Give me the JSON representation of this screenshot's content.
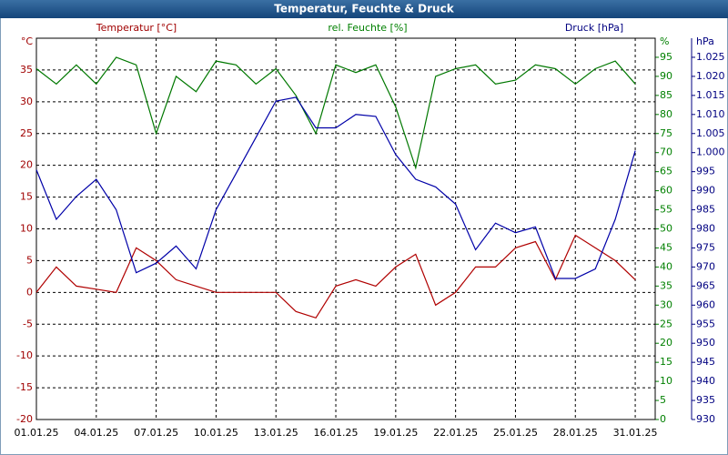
{
  "chart_data": {
    "type": "line",
    "title": "Temperatur, Feuchte & Druck",
    "ylabel": "Temperatur [°C]",
    "y2label": "rel. Feuchte [%]",
    "y3label": "Druck [hPa]",
    "y_unit": "°C",
    "y2_unit": "%",
    "y3_unit": "hPa",
    "x": [
      "01.01.25",
      "02.01.25",
      "03.01.25",
      "04.01.25",
      "05.01.25",
      "06.01.25",
      "07.01.25",
      "08.01.25",
      "09.01.25",
      "10.01.25",
      "11.01.25",
      "12.01.25",
      "13.01.25",
      "14.01.25",
      "15.01.25",
      "16.01.25",
      "17.01.25",
      "18.01.25",
      "19.01.25",
      "20.01.25",
      "21.01.25",
      "22.01.25",
      "23.01.25",
      "24.01.25",
      "25.01.25",
      "26.01.25",
      "27.01.25",
      "28.01.25",
      "29.01.25",
      "30.01.25",
      "31.01.25"
    ],
    "xticks": [
      "01.01.25",
      "04.01.25",
      "07.01.25",
      "10.01.25",
      "13.01.25",
      "16.01.25",
      "19.01.25",
      "22.01.25",
      "25.01.25",
      "28.01.25",
      "31.01.25"
    ],
    "ylim": [
      -20,
      40
    ],
    "yticks": [
      -20,
      -15,
      -10,
      -5,
      0,
      5,
      10,
      15,
      20,
      25,
      30,
      35
    ],
    "y2lim": [
      0,
      100
    ],
    "y2ticks": [
      0,
      5,
      10,
      15,
      20,
      25,
      30,
      35,
      40,
      45,
      50,
      55,
      60,
      65,
      70,
      75,
      80,
      85,
      90,
      95
    ],
    "y3lim": [
      930,
      1030
    ],
    "y3ticks": [
      930,
      935,
      940,
      945,
      950,
      955,
      960,
      965,
      970,
      975,
      980,
      985,
      990,
      995,
      {
        "value": 1000,
        "label": "1.000"
      },
      {
        "value": 1005,
        "label": "1.005"
      },
      {
        "value": 1010,
        "label": "1.010"
      },
      {
        "value": 1015,
        "label": "1.015"
      },
      {
        "value": 1020,
        "label": "1.020"
      },
      {
        "value": 1025,
        "label": "1.025"
      }
    ],
    "grid": true,
    "series": [
      {
        "name": "Temperatur",
        "color": "#b00000",
        "axis": "y",
        "values": [
          0,
          4,
          1,
          0.5,
          0,
          7,
          5,
          2,
          1,
          0,
          0,
          0,
          0,
          -3,
          -4,
          1,
          2,
          1,
          4,
          6,
          -2,
          0,
          4,
          4,
          7,
          8,
          2,
          9,
          7,
          5,
          2
        ]
      },
      {
        "name": "rel. Feuchte",
        "color": "#007800",
        "axis": "y2",
        "values": [
          92,
          88,
          93,
          88,
          95,
          93,
          75,
          90,
          86,
          94,
          93,
          88,
          92,
          85,
          75,
          93,
          91,
          93,
          82,
          66,
          90,
          92,
          93,
          88,
          89,
          93,
          92,
          88,
          92,
          94,
          88
        ]
      },
      {
        "name": "Druck",
        "color": "#0000a8",
        "axis": "y3",
        "values": [
          995.5,
          982.5,
          988.5,
          993,
          985,
          968.5,
          971,
          975.5,
          969.5,
          985,
          994.5,
          1004,
          1013.5,
          1014.5,
          1006.5,
          1006.5,
          1010,
          1009.5,
          999.5,
          993,
          991,
          986.5,
          974.5,
          981.5,
          979,
          980.5,
          967,
          967,
          969.5,
          982.5,
          1000.5
        ]
      }
    ]
  }
}
